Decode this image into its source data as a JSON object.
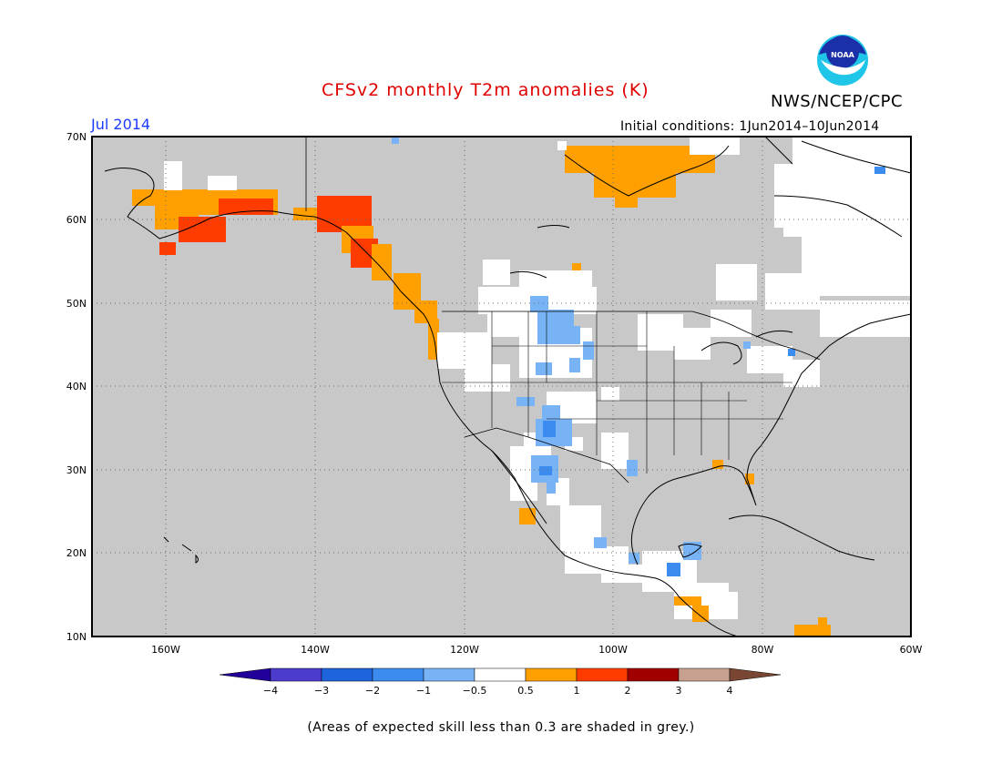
{
  "header": {
    "title": "CFSv2 monthly T2m anomalies (K)",
    "organization": "NWS/NCEP/CPC",
    "logo_text": "NOAA",
    "month": "Jul 2014",
    "initial_conditions": "Initial conditions: 1Jun2014–10Jun2014"
  },
  "map": {
    "latitude_labels": [
      "70N",
      "60N",
      "50N",
      "40N",
      "30N",
      "20N",
      "10N"
    ],
    "longitude_labels": [
      "160W",
      "140W",
      "120W",
      "100W",
      "80W",
      "60W"
    ],
    "extent": {
      "lon": [
        -172,
        -60
      ],
      "lat": [
        10,
        70
      ]
    },
    "grid_interval_deg": {
      "lon": 20,
      "lat": 10
    },
    "colors": {
      "low_skill_grey": "#c8c8c8",
      "ocean": "#c8c8c8",
      "coastline": "#000000",
      "gridline": "#6e6e6e"
    }
  },
  "colorbar": {
    "tick_labels": [
      "−4",
      "−3",
      "−2",
      "−1",
      "−0.5",
      "0.5",
      "1",
      "2",
      "3",
      "4"
    ],
    "bins": [
      {
        "color": "#22009a"
      },
      {
        "color": "#4b3ccd"
      },
      {
        "color": "#1e64dc"
      },
      {
        "color": "#3c8cf0"
      },
      {
        "color": "#78b4f5"
      },
      {
        "color": "#ffffff"
      },
      {
        "color": "#ffa000"
      },
      {
        "color": "#ff3c00"
      },
      {
        "color": "#a00000"
      },
      {
        "color": "#c8a090"
      },
      {
        "color": "#784632"
      }
    ]
  },
  "footnote": "(Areas of expected skill less than 0.3 are shaded in grey.)"
}
